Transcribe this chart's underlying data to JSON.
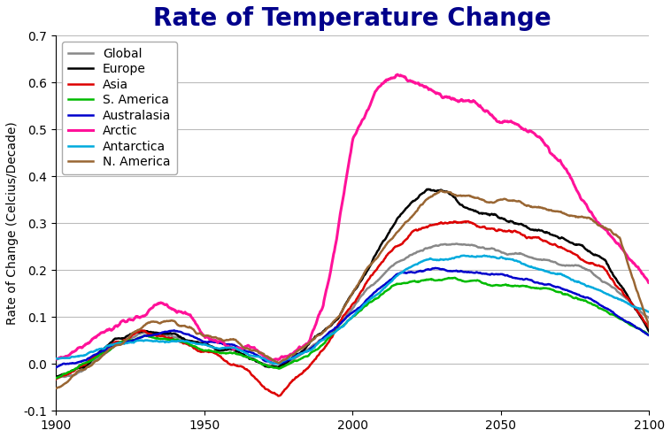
{
  "title": "Rate of Temperature Change",
  "title_color": "#00008B",
  "title_fontsize": 20,
  "title_fontweight": "bold",
  "ylabel": "Rate of Change (Celcius/Decade)",
  "ylabel_fontsize": 10,
  "ylim": [
    -0.1,
    0.7
  ],
  "yticks": [
    -0.1,
    0.0,
    0.1,
    0.2,
    0.3,
    0.4,
    0.5,
    0.6,
    0.7
  ],
  "xlim": [
    1900,
    2100
  ],
  "xticks": [
    1900,
    1950,
    2000,
    2050,
    2100
  ],
  "background_color": "#ffffff",
  "grid_color": "#bbbbbb",
  "legend_fontsize": 10,
  "series": [
    {
      "name": "Global",
      "color": "#888888",
      "linewidth": 1.8
    },
    {
      "name": "Europe",
      "color": "#000000",
      "linewidth": 1.8
    },
    {
      "name": "Asia",
      "color": "#dd0000",
      "linewidth": 1.8
    },
    {
      "name": "S. America",
      "color": "#00bb00",
      "linewidth": 1.8
    },
    {
      "name": "Australasia",
      "color": "#0000cc",
      "linewidth": 1.8
    },
    {
      "name": "Arctic",
      "color": "#ff1199",
      "linewidth": 2.2
    },
    {
      "name": "Antarctica",
      "color": "#00aadd",
      "linewidth": 1.8
    },
    {
      "name": "N. America",
      "color": "#996633",
      "linewidth": 1.8
    }
  ]
}
